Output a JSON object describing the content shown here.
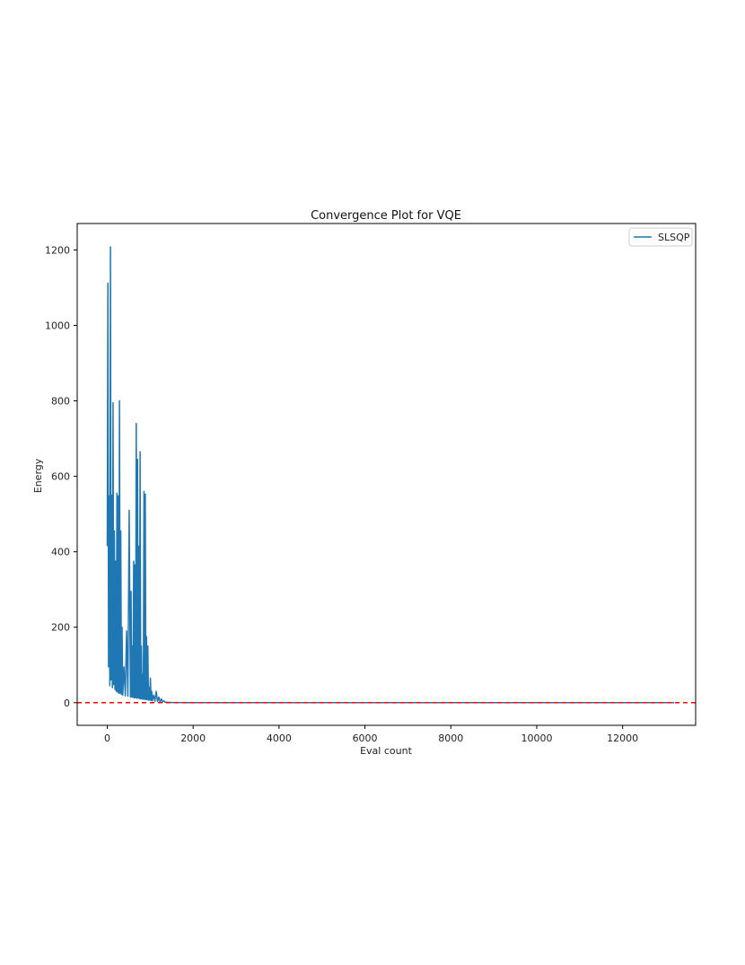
{
  "chart_data": {
    "type": "line",
    "title": "Convergence Plot for VQE",
    "xlabel": "Eval count",
    "ylabel": "Energy",
    "xlim": [
      -700,
      13700
    ],
    "ylim": [
      -60,
      1270
    ],
    "xticks": [
      0,
      2000,
      4000,
      6000,
      8000,
      10000,
      12000
    ],
    "yticks": [
      0,
      200,
      400,
      600,
      800,
      1000,
      1200
    ],
    "grid": false,
    "legend_position": "top-right",
    "colors": {
      "series": "#1f77b4",
      "reference": "#ff0000"
    },
    "series": [
      {
        "name": "SLSQP",
        "x": [
          0,
          15,
          30,
          45,
          60,
          75,
          90,
          105,
          120,
          135,
          150,
          165,
          180,
          195,
          210,
          225,
          240,
          255,
          270,
          285,
          300,
          315,
          330,
          345,
          360,
          390,
          420,
          450,
          480,
          510,
          540,
          555,
          570,
          585,
          600,
          615,
          630,
          645,
          660,
          675,
          690,
          705,
          720,
          735,
          750,
          765,
          780,
          795,
          810,
          825,
          840,
          855,
          870,
          885,
          900,
          915,
          930,
          945,
          960,
          975,
          990,
          1005,
          1020,
          1035,
          1050,
          1080,
          1110,
          1140,
          1170,
          1200,
          1230,
          1260,
          1290,
          1320,
          1350,
          1400,
          1500,
          1600,
          1800,
          2000,
          3000,
          5000,
          7000,
          9000,
          11000,
          13200
        ],
        "y": [
          415,
          1112,
          95,
          548,
          45,
          1208,
          60,
          550,
          40,
          795,
          48,
          455,
          35,
          375,
          30,
          555,
          28,
          548,
          25,
          800,
          25,
          455,
          22,
          200,
          20,
          95,
          18,
          190,
          17,
          510,
          15,
          295,
          15,
          150,
          14,
          375,
          13,
          365,
          13,
          740,
          12,
          645,
          12,
          415,
          11,
          665,
          10,
          150,
          10,
          75,
          9,
          560,
          9,
          553,
          8,
          175,
          8,
          150,
          7,
          40,
          7,
          65,
          6,
          30,
          5,
          20,
          4,
          30,
          3,
          15,
          2,
          10,
          2,
          5,
          1,
          1,
          0.5,
          0.3,
          0.2,
          0.1,
          0,
          0,
          0,
          0,
          0,
          0
        ]
      }
    ],
    "reference_line": {
      "y": 0,
      "style": "dashed"
    }
  }
}
